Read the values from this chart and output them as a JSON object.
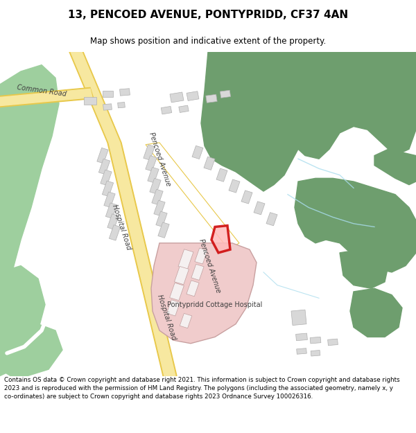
{
  "title": "13, PENCOED AVENUE, PONTYPRIDD, CF37 4AN",
  "subtitle": "Map shows position and indicative extent of the property.",
  "footer": "Contains OS data © Crown copyright and database right 2021. This information is subject to Crown copyright and database rights 2023 and is reproduced with the permission of HM Land Registry. The polygons (including the associated geometry, namely x, y co-ordinates) are subject to Crown copyright and database rights 2023 Ordnance Survey 100026316.",
  "bg_color": "#ffffff",
  "map_bg": "#f5f5f5",
  "road_yellow": "#f7e8a0",
  "road_outline": "#e8c84a",
  "road_white": "#ffffff",
  "green_dark": "#6e9e6e",
  "green_light": "#9ecf9e",
  "building_color": "#d8d8d8",
  "building_stroke": "#b0b0b0",
  "hospital_color": "#f0cccc",
  "highlight_red": "#cc0000",
  "label_color": "#404040",
  "stream_color": "#aaddee"
}
